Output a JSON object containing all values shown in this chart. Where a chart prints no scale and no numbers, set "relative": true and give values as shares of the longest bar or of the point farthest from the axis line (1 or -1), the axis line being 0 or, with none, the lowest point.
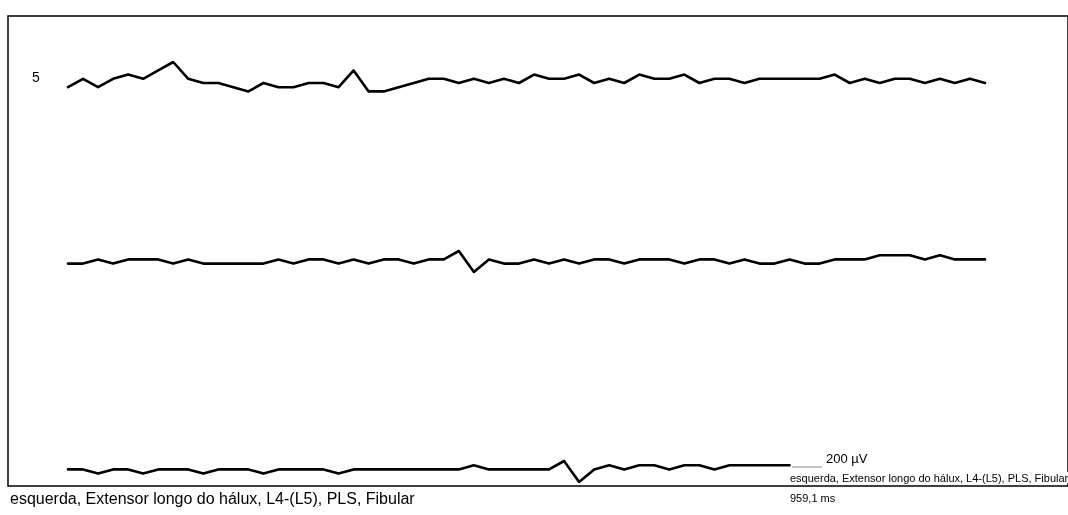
{
  "chart_data": {
    "type": "line",
    "relative": true,
    "categories": [
      null,
      null,
      null,
      null,
      null,
      null,
      null,
      null,
      null,
      null,
      null,
      null,
      null,
      null,
      null,
      null,
      null,
      null,
      null,
      null,
      null,
      null,
      null,
      null,
      null,
      null,
      null,
      null,
      null,
      null,
      null,
      null,
      null,
      null,
      null,
      null,
      null,
      null,
      null,
      null,
      null,
      null,
      null,
      null,
      null,
      null,
      null,
      null,
      null,
      null,
      null,
      null,
      null,
      null,
      null,
      null,
      null,
      null,
      null,
      null,
      null,
      null
    ],
    "series": [
      {
        "color": "#000000",
        "values": [
          0.94,
          0.96,
          0.94,
          0.96,
          0.97,
          0.96,
          0.98,
          1.0,
          0.96,
          0.95,
          0.95,
          0.94,
          0.93,
          0.95,
          0.94,
          0.94,
          0.95,
          0.95,
          0.94,
          0.98,
          0.93,
          0.93,
          0.94,
          0.95,
          0.96,
          0.96,
          0.95,
          0.96,
          0.95,
          0.96,
          0.95,
          0.97,
          0.96,
          0.96,
          0.97,
          0.95,
          0.96,
          0.95,
          0.97,
          0.96,
          0.96,
          0.97,
          0.95,
          0.96,
          0.96,
          0.95,
          0.96,
          0.96,
          0.96,
          0.96,
          0.96,
          0.97,
          0.95,
          0.96,
          0.95,
          0.96,
          0.96,
          0.95,
          0.96,
          0.95,
          0.96,
          0.95
        ]
      },
      {
        "color": "#000000",
        "values": [
          0.52,
          0.52,
          0.53,
          0.52,
          0.53,
          0.53,
          0.53,
          0.52,
          0.53,
          0.52,
          0.52,
          0.52,
          0.52,
          0.52,
          0.53,
          0.52,
          0.53,
          0.53,
          0.52,
          0.53,
          0.52,
          0.53,
          0.53,
          0.52,
          0.53,
          0.53,
          0.55,
          0.5,
          0.53,
          0.52,
          0.52,
          0.53,
          0.52,
          0.53,
          0.52,
          0.53,
          0.53,
          0.52,
          0.53,
          0.53,
          0.53,
          0.52,
          0.53,
          0.53,
          0.52,
          0.53,
          0.52,
          0.52,
          0.53,
          0.52,
          0.52,
          0.53,
          0.53,
          0.53,
          0.54,
          0.54,
          0.54,
          0.53,
          0.54,
          0.53,
          0.53,
          0.53
        ]
      },
      {
        "color": "#000000",
        "values": [
          0.03,
          0.03,
          0.02,
          0.03,
          0.03,
          0.02,
          0.03,
          0.03,
          0.03,
          0.02,
          0.03,
          0.03,
          0.03,
          0.02,
          0.03,
          0.03,
          0.03,
          0.03,
          0.02,
          0.03,
          0.03,
          0.03,
          0.03,
          0.03,
          0.03,
          0.03,
          0.03,
          0.04,
          0.03,
          0.03,
          0.03,
          0.03,
          0.03,
          0.05,
          0.0,
          0.03,
          0.04,
          0.03,
          0.04,
          0.04,
          0.03,
          0.04,
          0.04,
          0.03,
          0.04,
          0.04,
          0.04,
          0.04,
          0.04,
          null,
          null,
          null,
          null,
          null,
          null,
          null,
          null,
          null,
          null,
          null,
          null,
          null
        ]
      }
    ],
    "annotations": [
      "5",
      "200 µV",
      "esquerda, Extensor longo do hálux, L4-(L5), PLS, Fibular",
      "959,1 ms",
      "esquerda, Extensor longo do hálux, L4-(L5), PLS, Fibular"
    ],
    "grid": false,
    "marker": "none",
    "line_style": "solid"
  }
}
